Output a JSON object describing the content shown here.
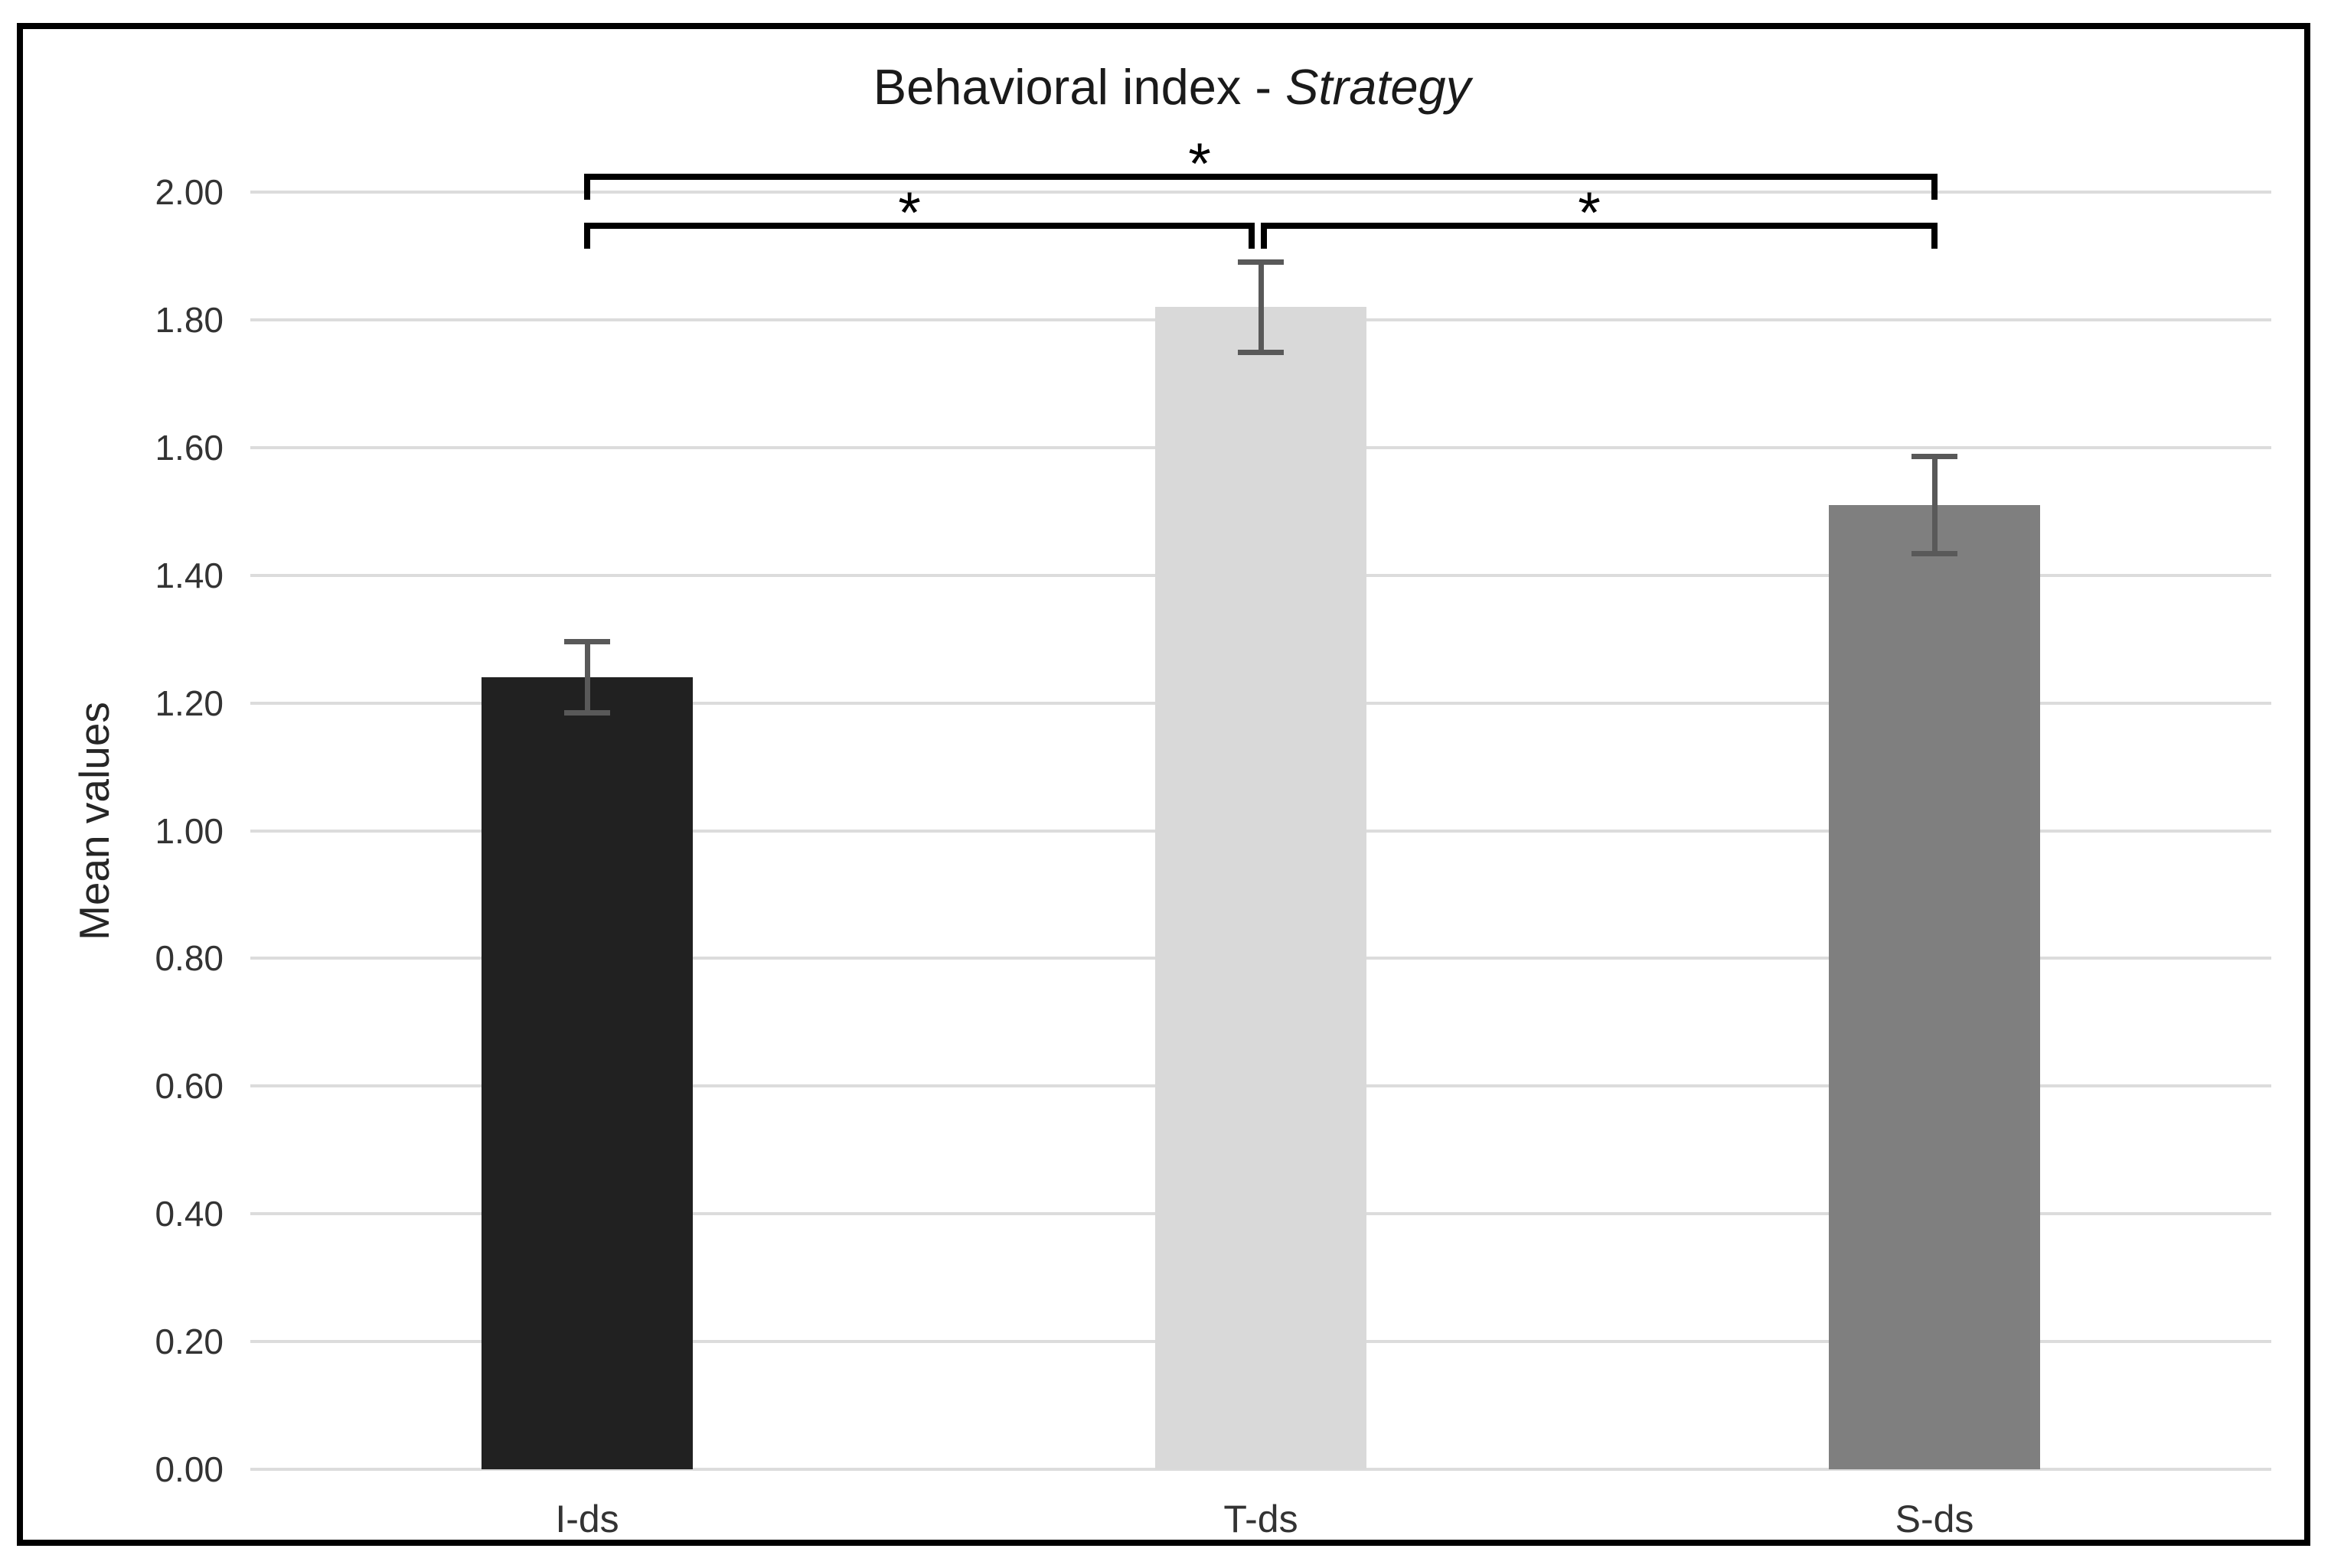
{
  "figure": {
    "title_prefix": "Behavioral index - ",
    "title_emphasis": "Strategy",
    "y_axis_title": "Mean values"
  },
  "chart_data": {
    "type": "bar",
    "title": "Behavioral index - Strategy",
    "xlabel": "",
    "ylabel": "Mean values",
    "categories": [
      "I-ds",
      "T-ds",
      "S-ds"
    ],
    "values": [
      1.24,
      1.82,
      1.51
    ],
    "error_bars": [
      0.06,
      0.075,
      0.08
    ],
    "bar_colors": [
      "#212121",
      "#d9d9d9",
      "#7f7f7f"
    ],
    "error_bar_color": "#595959",
    "gridline_color": "#dcdcdc",
    "ylim": [
      0.0,
      2.0
    ],
    "ytick_step": 0.2,
    "ytick_labels": [
      "0.00",
      "0.20",
      "0.40",
      "0.60",
      "0.80",
      "1.00",
      "1.20",
      "1.40",
      "1.60",
      "1.80",
      "2.00"
    ],
    "grid": "horizontal",
    "legend": "none",
    "significance_brackets": [
      {
        "from": "I-ds",
        "to": "S-ds",
        "label": "*",
        "level": "top"
      },
      {
        "from": "I-ds",
        "to": "T-ds",
        "label": "*",
        "level": "lower"
      },
      {
        "from": "T-ds",
        "to": "S-ds",
        "label": "*",
        "level": "lower"
      }
    ]
  }
}
